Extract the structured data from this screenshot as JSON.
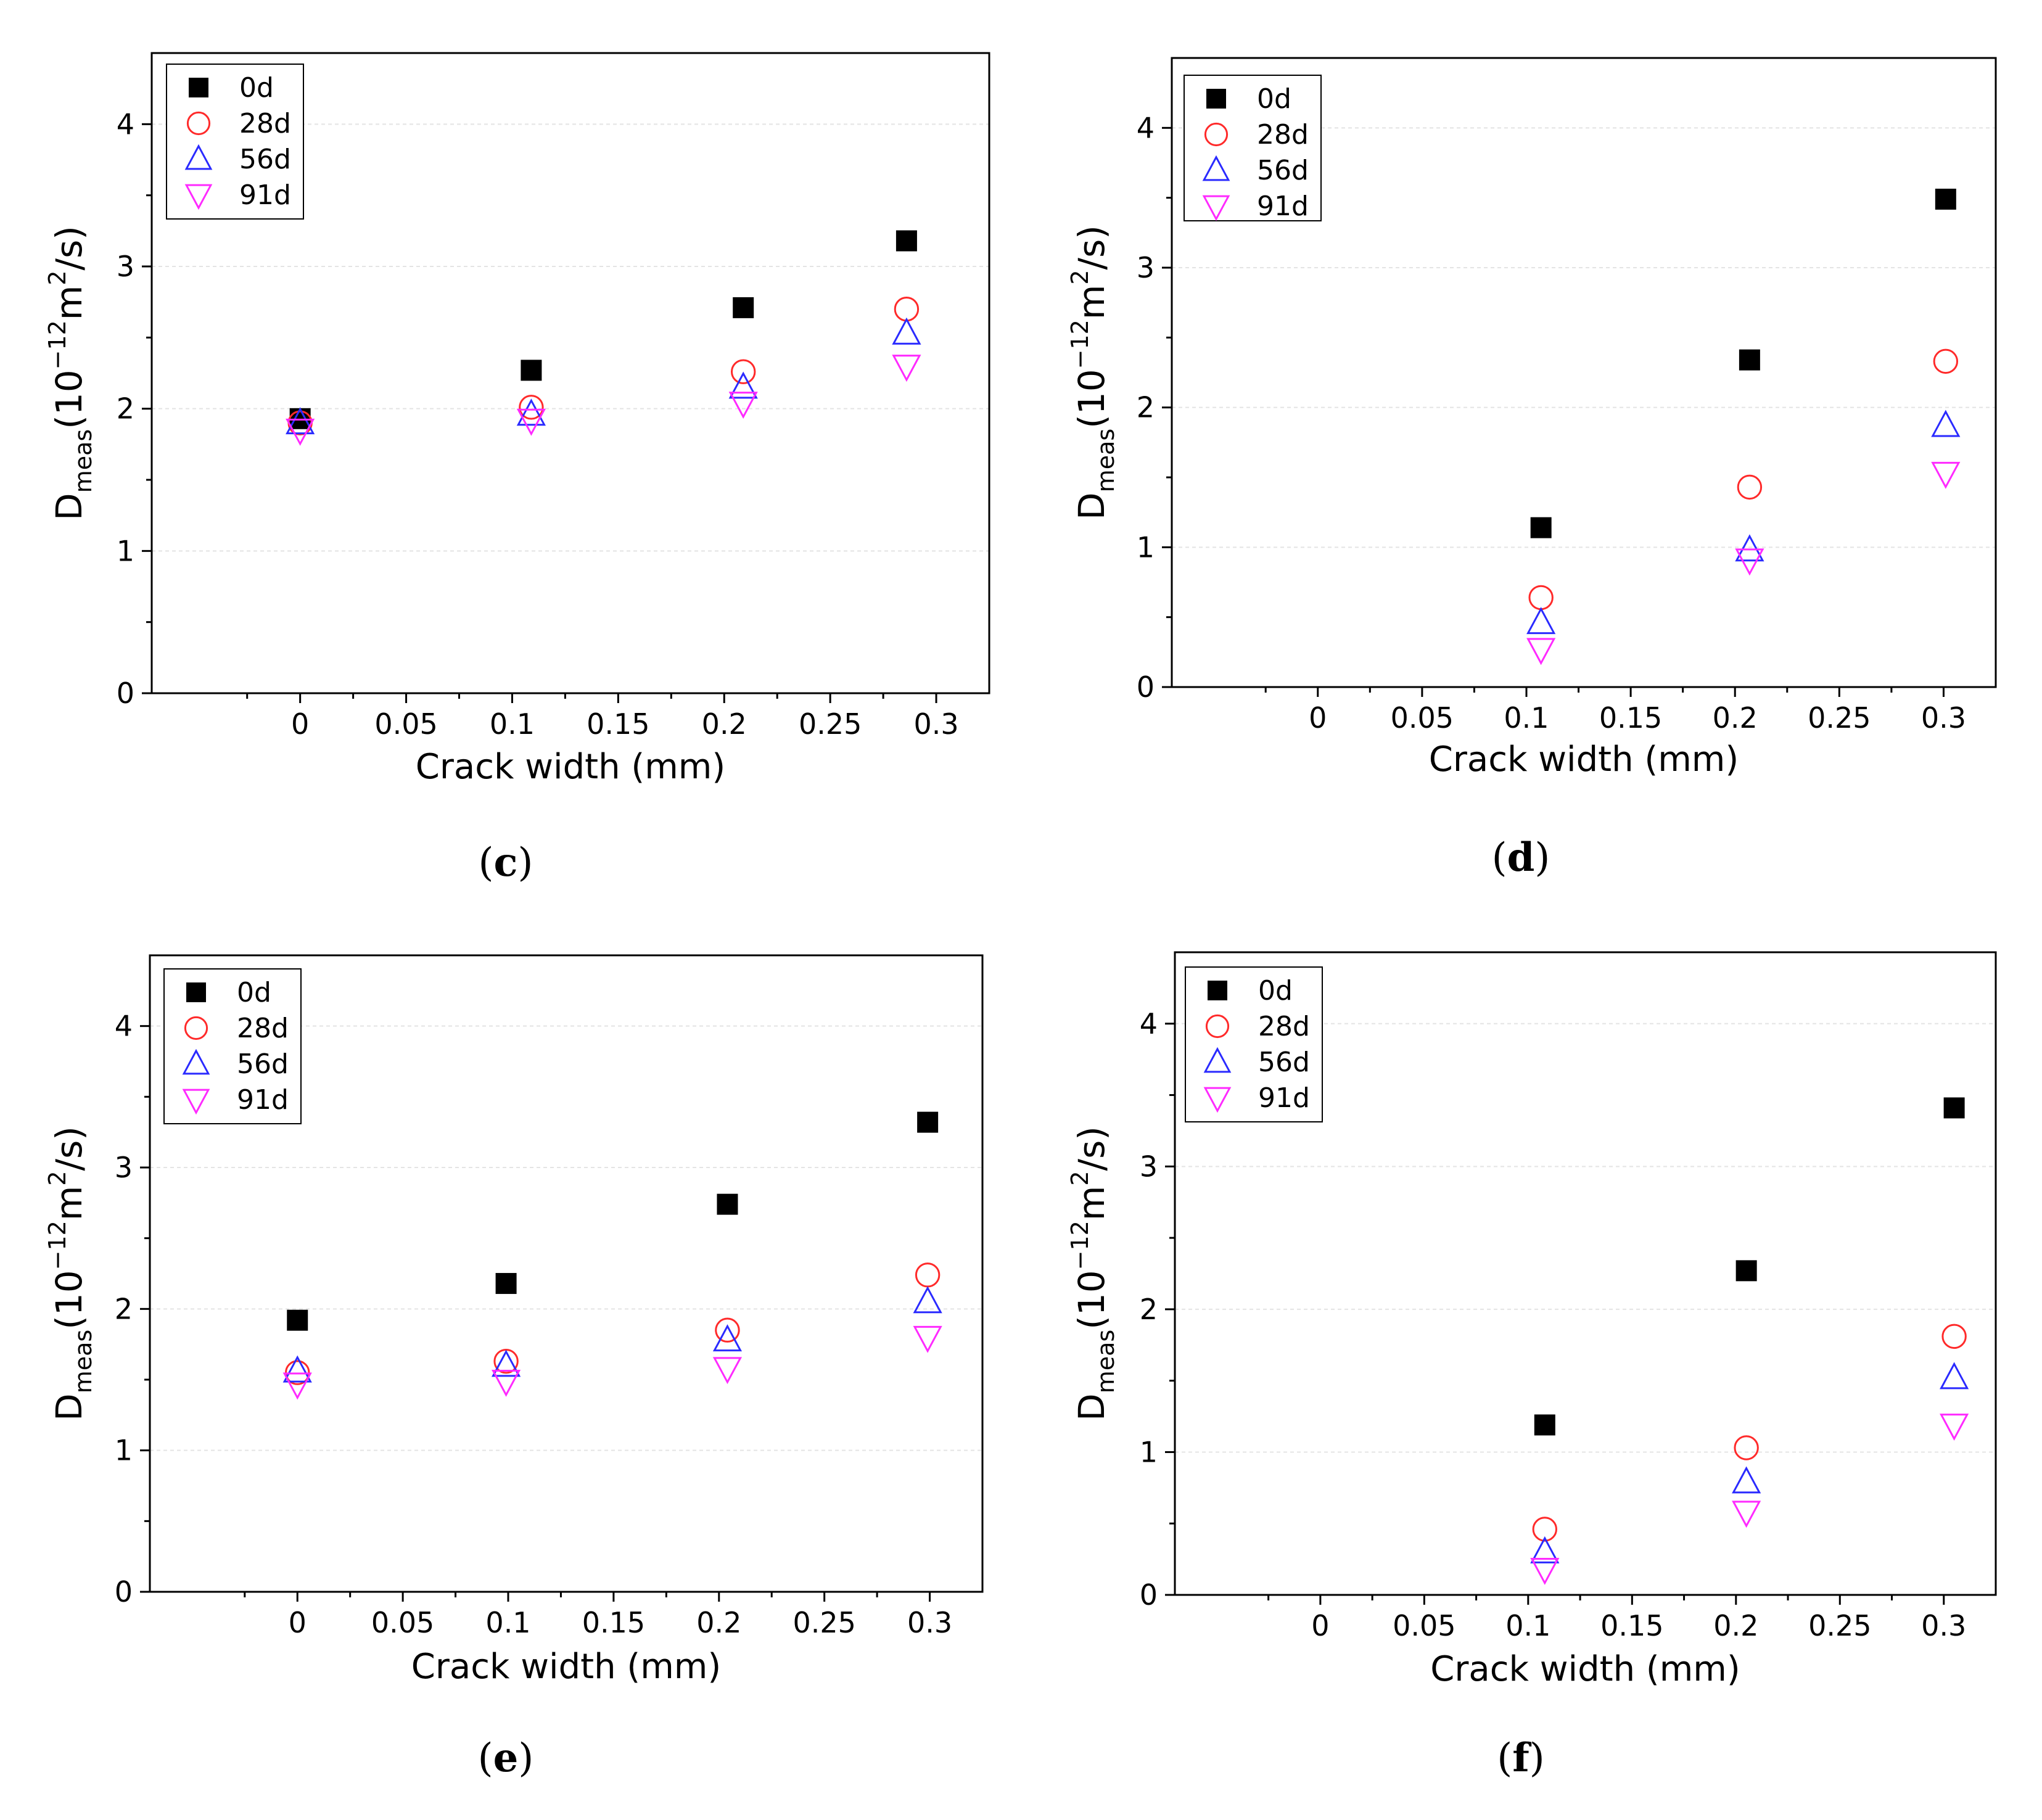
{
  "colors": {
    "0d": "#000000",
    "28d": "#ff2a2a",
    "56d": "#2a2aff",
    "91d": "#ff2aff",
    "grid": "#e4e4e4"
  },
  "chart_data": [
    {
      "type": "scatter",
      "caption": "(c)",
      "xlabel": "Crack width (mm)",
      "ylabel": "D_meas(10^-12 m^2/s)",
      "xlim": [
        -0.07,
        0.325
      ],
      "ylim": [
        0,
        4.5
      ],
      "xticks": [
        0,
        0.05,
        0.1,
        0.15,
        0.2,
        0.25,
        0.3
      ],
      "yticks": [
        0,
        1,
        2,
        3,
        4
      ],
      "grid": true,
      "legend": "top-left",
      "series": [
        {
          "name": "0d",
          "marker": "square-filled",
          "x": [
            0,
            0.109,
            0.209,
            0.286
          ],
          "y": [
            1.93,
            2.27,
            2.71,
            3.18
          ]
        },
        {
          "name": "28d",
          "marker": "circle-open",
          "x": [
            0,
            0.109,
            0.209,
            0.286
          ],
          "y": [
            1.9,
            2.01,
            2.26,
            2.7
          ]
        },
        {
          "name": "56d",
          "marker": "triangle-up-open",
          "x": [
            0,
            0.109,
            0.209,
            0.286
          ],
          "y": [
            1.9,
            1.96,
            2.15,
            2.53
          ]
        },
        {
          "name": "91d",
          "marker": "triangle-down-open",
          "x": [
            0,
            0.109,
            0.209,
            0.286
          ],
          "y": [
            1.85,
            1.92,
            2.04,
            2.3
          ]
        }
      ]
    },
    {
      "type": "scatter",
      "caption": "(d)",
      "xlabel": "Crack width (mm)",
      "ylabel": "D_meas(10^-12 m^2/s)",
      "xlim": [
        -0.07,
        0.325
      ],
      "ylim": [
        0,
        4.5
      ],
      "xticks": [
        0,
        0.05,
        0.1,
        0.15,
        0.2,
        0.25,
        0.3
      ],
      "yticks": [
        0,
        1,
        2,
        3,
        4
      ],
      "grid": true,
      "legend": "top-left",
      "series": [
        {
          "name": "0d",
          "marker": "square-filled",
          "x": [
            0.107,
            0.207,
            0.301
          ],
          "y": [
            1.14,
            2.34,
            3.49
          ]
        },
        {
          "name": "28d",
          "marker": "circle-open",
          "x": [
            0.107,
            0.207,
            0.301
          ],
          "y": [
            0.64,
            1.43,
            2.33
          ]
        },
        {
          "name": "56d",
          "marker": "triangle-up-open",
          "x": [
            0.107,
            0.207,
            0.301
          ],
          "y": [
            0.46,
            0.98,
            1.87
          ]
        },
        {
          "name": "91d",
          "marker": "triangle-down-open",
          "x": [
            0.107,
            0.207,
            0.301
          ],
          "y": [
            0.27,
            0.91,
            1.53
          ]
        }
      ]
    },
    {
      "type": "scatter",
      "caption": "(e)",
      "xlabel": "Crack width (mm)",
      "ylabel": "D_meas(10^-12 m^2/s)",
      "xlim": [
        -0.07,
        0.325
      ],
      "ylim": [
        0,
        4.5
      ],
      "xticks": [
        0,
        0.05,
        0.1,
        0.15,
        0.2,
        0.25,
        0.3
      ],
      "yticks": [
        0,
        1,
        2,
        3,
        4
      ],
      "grid": true,
      "legend": "top-left",
      "series": [
        {
          "name": "0d",
          "marker": "square-filled",
          "x": [
            0,
            0.099,
            0.204,
            0.299
          ],
          "y": [
            1.92,
            2.18,
            2.74,
            3.32
          ]
        },
        {
          "name": "28d",
          "marker": "circle-open",
          "x": [
            0,
            0.099,
            0.204,
            0.299
          ],
          "y": [
            1.55,
            1.63,
            1.85,
            2.24
          ]
        },
        {
          "name": "56d",
          "marker": "triangle-up-open",
          "x": [
            0,
            0.099,
            0.204,
            0.299
          ],
          "y": [
            1.56,
            1.6,
            1.78,
            2.05
          ]
        },
        {
          "name": "91d",
          "marker": "triangle-down-open",
          "x": [
            0,
            0.099,
            0.204,
            0.299
          ],
          "y": [
            1.47,
            1.49,
            1.58,
            1.8
          ]
        }
      ]
    },
    {
      "type": "scatter",
      "caption": "(f)",
      "xlabel": "Crack width (mm)",
      "ylabel": "D_meas(10^-12 m^2/s)",
      "xlim": [
        -0.07,
        0.325
      ],
      "ylim": [
        0,
        4.5
      ],
      "xticks": [
        0,
        0.05,
        0.1,
        0.15,
        0.2,
        0.25,
        0.3
      ],
      "yticks": [
        0,
        1,
        2,
        3,
        4
      ],
      "grid": true,
      "legend": "top-left",
      "series": [
        {
          "name": "0d",
          "marker": "square-filled",
          "x": [
            0.108,
            0.205,
            0.305
          ],
          "y": [
            1.19,
            2.27,
            3.41
          ]
        },
        {
          "name": "28d",
          "marker": "circle-open",
          "x": [
            0.108,
            0.205,
            0.305
          ],
          "y": [
            0.46,
            1.03,
            1.81
          ]
        },
        {
          "name": "56d",
          "marker": "triangle-up-open",
          "x": [
            0.108,
            0.205,
            0.305
          ],
          "y": [
            0.3,
            0.79,
            1.52
          ]
        },
        {
          "name": "91d",
          "marker": "triangle-down-open",
          "x": [
            0.108,
            0.205,
            0.305
          ],
          "y": [
            0.18,
            0.58,
            1.19
          ]
        }
      ]
    }
  ]
}
